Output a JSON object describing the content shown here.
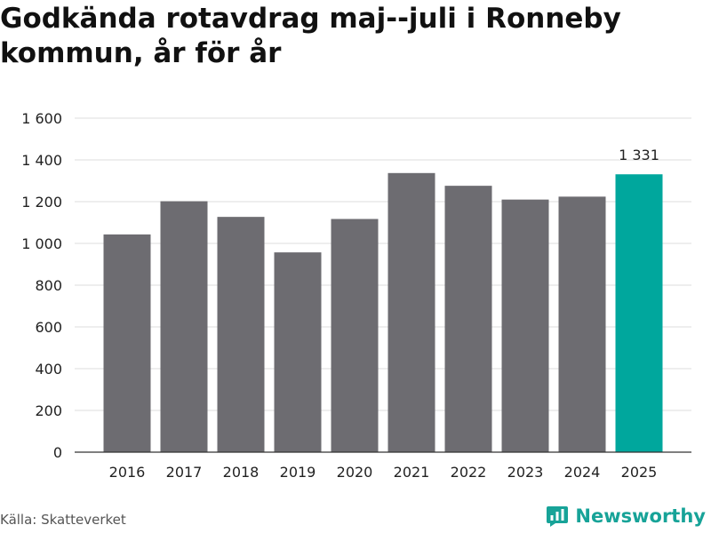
{
  "title": "Godkända rotavdrag maj--juli i Ronneby kommun, år för år",
  "source": "Källa: Skatteverket",
  "brand": {
    "name": "Newsworthy",
    "icon": "newsworthy-logo-icon"
  },
  "colors": {
    "bar": "#6d6c71",
    "highlight": "#00a79d",
    "grid": "#dedede",
    "axis": "#333333"
  },
  "chart_data": {
    "type": "bar",
    "title": "Godkända rotavdrag maj--juli i Ronneby kommun, år för år",
    "xlabel": "",
    "ylabel": "",
    "categories": [
      "2016",
      "2017",
      "2018",
      "2019",
      "2020",
      "2021",
      "2022",
      "2023",
      "2024",
      "2025"
    ],
    "values": [
      1043,
      1202,
      1127,
      957,
      1117,
      1337,
      1276,
      1210,
      1224,
      1331
    ],
    "ylim": [
      0,
      1600
    ],
    "yticks": [
      0,
      200,
      400,
      600,
      800,
      1000,
      1200,
      1400,
      1600
    ],
    "ytick_labels": [
      "0",
      "200",
      "400",
      "600",
      "800",
      "1 000",
      "1 200",
      "1 400",
      "1 600"
    ],
    "highlight_index": 9,
    "data_labels": [
      {
        "index": 9,
        "text": "1 331"
      }
    ],
    "grid": true,
    "legend": "none"
  }
}
